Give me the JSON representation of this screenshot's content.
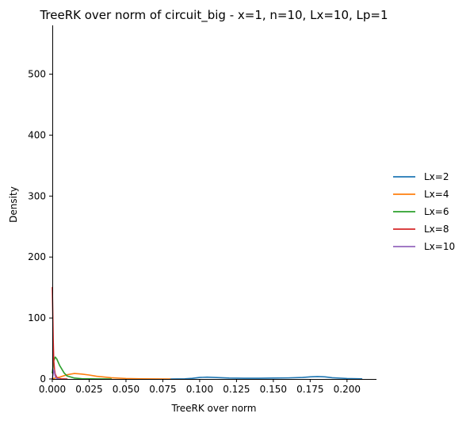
{
  "chart_data": {
    "type": "line",
    "title": "TreeRK over norm of circuit_big - x=1, n=10, Lx=10, Lp=1",
    "xlabel": "TreeRK over norm",
    "ylabel": "Density",
    "xlim": [
      0,
      0.22
    ],
    "ylim": [
      0,
      580
    ],
    "xticks": [
      0.0,
      0.025,
      0.05,
      0.075,
      0.1,
      0.125,
      0.15,
      0.175,
      0.2
    ],
    "xtick_labels": [
      "0.000",
      "0.025",
      "0.050",
      "0.075",
      "0.100",
      "0.125",
      "0.150",
      "0.175",
      "0.200"
    ],
    "yticks": [
      0,
      100,
      200,
      300,
      400,
      500
    ],
    "ytick_labels": [
      "0",
      "100",
      "200",
      "300",
      "400",
      "500"
    ],
    "grid": false,
    "legend_position": "right",
    "series": [
      {
        "name": "Lx=2",
        "color": "#1f77b4",
        "x": [
          0.08,
          0.09,
          0.095,
          0.1,
          0.105,
          0.11,
          0.12,
          0.13,
          0.14,
          0.15,
          0.16,
          0.17,
          0.175,
          0.18,
          0.185,
          0.19,
          0.2,
          0.21
        ],
        "y": [
          0,
          0.3,
          1,
          2.5,
          3,
          2.5,
          1.5,
          1.2,
          1.2,
          1.5,
          1.8,
          2.5,
          3.5,
          4,
          3.5,
          2,
          0.8,
          0.3
        ]
      },
      {
        "name": "Lx=4",
        "color": "#ff7f0e",
        "x": [
          0.0,
          0.005,
          0.01,
          0.015,
          0.02,
          0.025,
          0.03,
          0.04,
          0.05,
          0.06,
          0.07,
          0.08
        ],
        "y": [
          0.5,
          3,
          7,
          9,
          8,
          6.5,
          4.5,
          2,
          0.8,
          0.3,
          0.1,
          0
        ]
      },
      {
        "name": "Lx=6",
        "color": "#2ca02c",
        "x": [
          0.0,
          0.001,
          0.002,
          0.003,
          0.005,
          0.008,
          0.01,
          0.015,
          0.02,
          0.03,
          0.04
        ],
        "y": [
          10,
          30,
          36,
          33,
          22,
          10,
          5,
          1.5,
          0.5,
          0.1,
          0
        ]
      },
      {
        "name": "Lx=8",
        "color": "#d62728",
        "x": [
          0.0,
          0.0003,
          0.0006,
          0.001,
          0.0015,
          0.002,
          0.003,
          0.004,
          0.006,
          0.008,
          0.01
        ],
        "y": [
          150,
          110,
          65,
          30,
          15,
          8,
          3,
          1,
          0.2,
          0.05,
          0
        ]
      },
      {
        "name": "Lx=10",
        "color": "#9467bd",
        "x": [
          0.0,
          0.0005,
          0.001,
          0.0015,
          0.002,
          0.003,
          0.005
        ],
        "y": [
          0,
          8,
          15,
          10,
          4,
          1,
          0
        ]
      }
    ]
  }
}
